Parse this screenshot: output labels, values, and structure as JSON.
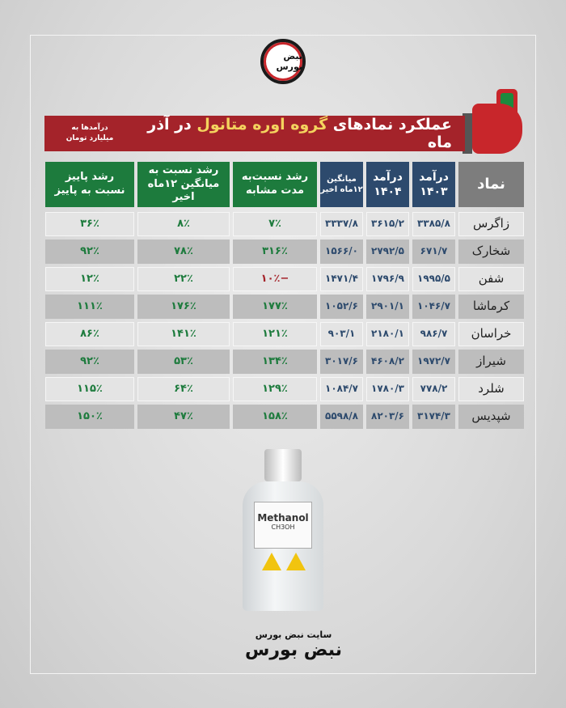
{
  "logo_text": "نبض بورس",
  "title": {
    "prefix": "عملکرد نمادهای ",
    "highlight": "گروه اوره متانول",
    "suffix": " در آذر ماه",
    "note_line1": "درآمدها به",
    "note_line2": "میلیارد تومان"
  },
  "headers": [
    {
      "l1": "نماد"
    },
    {
      "l1": "درآمد",
      "l2": "۱۴۰۳"
    },
    {
      "l1": "درآمد",
      "l2": "۱۴۰۴"
    },
    {
      "l1": "میانگین",
      "l2": "۱۲ماه اخیر"
    },
    {
      "l1": "رشد نسبت‌به",
      "l2": "مدت مشابه"
    },
    {
      "l1": "رشد نسبت به",
      "l2": "میانگین ۱۲ماه اخیر"
    },
    {
      "l1": "رشد پاییز",
      "l2": "نسبت به پاییز"
    }
  ],
  "rows": [
    [
      "زاگرس",
      "۳۳۸۵/۸",
      "۳۶۱۵/۲",
      "۳۳۳۷/۸",
      "۷٪",
      "۸٪",
      "۳۶٪"
    ],
    [
      "شخارک",
      "۶۷۱/۷",
      "۲۷۹۲/۵",
      "۱۵۶۶/۰",
      "۳۱۶٪",
      "۷۸٪",
      "۹۲٪"
    ],
    [
      "شفن",
      "۱۹۹۵/۵",
      "۱۷۹۶/۹",
      "۱۴۷۱/۴",
      "−۱۰٪",
      "۲۲٪",
      "۱۲٪"
    ],
    [
      "کرماشا",
      "۱۰۴۶/۷",
      "۲۹۰۱/۱",
      "۱۰۵۲/۶",
      "۱۷۷٪",
      "۱۷۶٪",
      "۱۱۱٪"
    ],
    [
      "خراسان",
      "۹۸۶/۷",
      "۲۱۸۰/۱",
      "۹۰۳/۱",
      "۱۲۱٪",
      "۱۴۱٪",
      "۸۶٪"
    ],
    [
      "شیراز",
      "۱۹۷۲/۷",
      "۴۶۰۸/۲",
      "۳۰۱۷/۶",
      "۱۳۴٪",
      "۵۳٪",
      "۹۲٪"
    ],
    [
      "شلرد",
      "۷۷۸/۲",
      "۱۷۸۰/۳",
      "۱۰۸۴/۷",
      "۱۲۹٪",
      "۶۴٪",
      "۱۱۵٪"
    ],
    [
      "شپدیس",
      "۳۱۷۴/۳",
      "۸۲۰۳/۶",
      "۵۵۹۸/۸",
      "۱۵۸٪",
      "۴۷٪",
      "۱۵۰٪"
    ]
  ],
  "bottle": {
    "label": "Methanol",
    "formula": "CH3OH"
  },
  "footer": {
    "site": "سایت نبض بورس",
    "brand": "نبض بورس"
  },
  "colors": {
    "red": "#a4232a",
    "green": "#1d7b3d",
    "blue": "#2d4a6d",
    "highlight": "#f4d35e"
  }
}
